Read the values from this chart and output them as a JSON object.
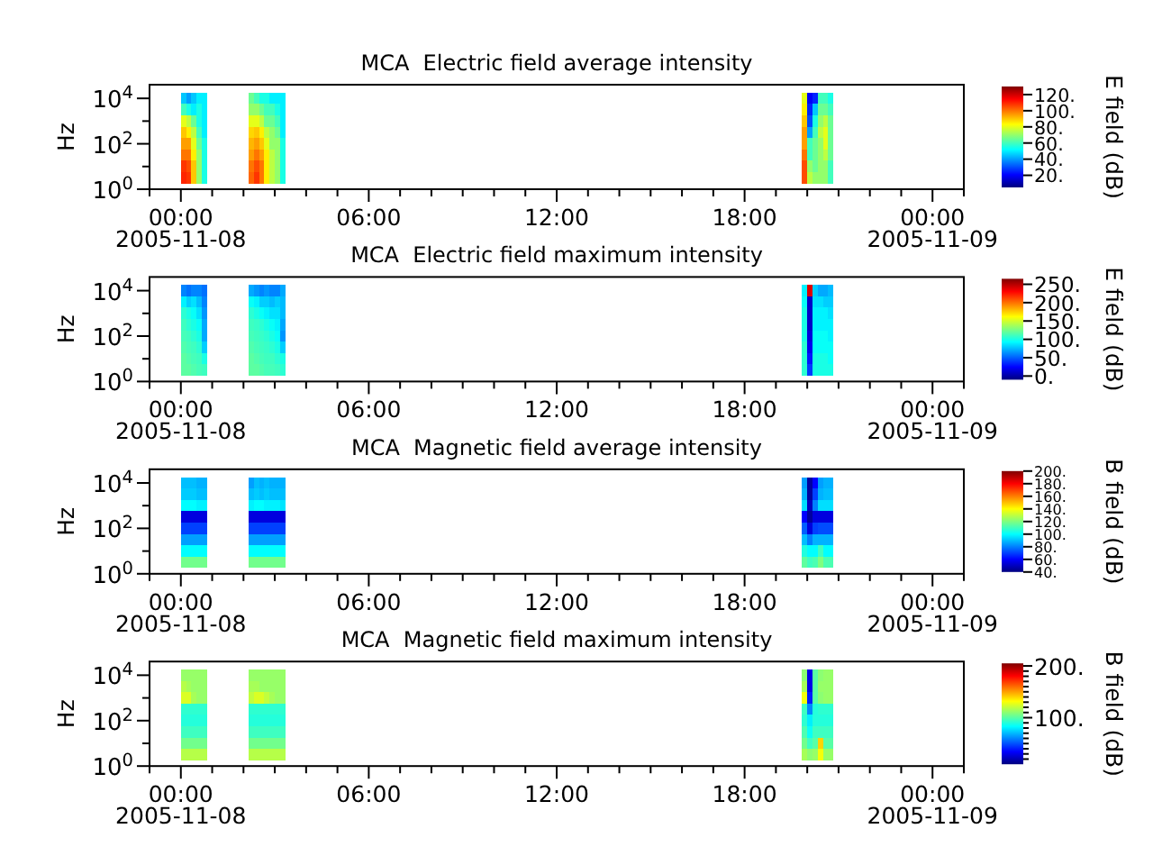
{
  "chart_data": [
    {
      "type": "heatmap",
      "title": "MCA  Electric field average intensity",
      "ylabel": "Hz",
      "clabel": "E field (dB)",
      "log": "y",
      "x": [
        "2005-11-08T00:05",
        "2005-11-08T00:15",
        "2005-11-08T00:25",
        "2005-11-08T00:35",
        "2005-11-08T00:45",
        "2005-11-08T00:55",
        "2005-11-08T02:05",
        "2005-11-08T02:15",
        "2005-11-08T02:25",
        "2005-11-08T02:35",
        "2005-11-08T02:45",
        "2005-11-08T02:55",
        "2005-11-08T03:05",
        "2005-11-08T03:15",
        "2005-11-08T03:25",
        "2005-11-08T19:45",
        "2005-11-08T19:55",
        "2005-11-08T20:05",
        "2005-11-08T20:15",
        "2005-11-08T20:25",
        "2005-11-08T20:35",
        "2005-11-08T20:45"
      ],
      "y": [
        10000,
        3162,
        1000,
        316,
        100,
        32,
        10,
        3.2
      ],
      "xlim": [
        "2005-11-07T23:00",
        "2005-11-09T01:00"
      ],
      "xticks": [
        {
          "value": "2005-11-07T23:00",
          "label": null
        },
        {
          "value": "2005-11-08T00:00",
          "label": "00:00\n2005-11-08"
        },
        {
          "value": "2005-11-08T01:00",
          "label": null
        },
        {
          "value": "2005-11-08T02:00",
          "label": null
        },
        {
          "value": "2005-11-08T03:00",
          "label": null
        },
        {
          "value": "2005-11-08T04:00",
          "label": null
        },
        {
          "value": "2005-11-08T05:00",
          "label": null
        },
        {
          "value": "2005-11-08T06:00",
          "label": "06:00"
        },
        {
          "value": "2005-11-08T07:00",
          "label": null
        },
        {
          "value": "2005-11-08T08:00",
          "label": null
        },
        {
          "value": "2005-11-08T09:00",
          "label": null
        },
        {
          "value": "2005-11-08T10:00",
          "label": null
        },
        {
          "value": "2005-11-08T11:00",
          "label": null
        },
        {
          "value": "2005-11-08T12:00",
          "label": "12:00"
        },
        {
          "value": "2005-11-08T13:00",
          "label": null
        },
        {
          "value": "2005-11-08T14:00",
          "label": null
        },
        {
          "value": "2005-11-08T15:00",
          "label": null
        },
        {
          "value": "2005-11-08T16:00",
          "label": null
        },
        {
          "value": "2005-11-08T17:00",
          "label": null
        },
        {
          "value": "2005-11-08T18:00",
          "label": "18:00"
        },
        {
          "value": "2005-11-08T19:00",
          "label": null
        },
        {
          "value": "2005-11-08T20:00",
          "label": null
        },
        {
          "value": "2005-11-08T21:00",
          "label": null
        },
        {
          "value": "2005-11-08T22:00",
          "label": null
        },
        {
          "value": "2005-11-08T23:00",
          "label": null
        },
        {
          "value": "2005-11-09T00:00",
          "label": "00:00\n2005-11-09"
        },
        {
          "value": "2005-11-09T01:00",
          "label": null
        }
      ],
      "ylim": [
        1,
        40000
      ],
      "yticks": [
        {
          "value": 1,
          "label": "10$^{0}$"
        },
        {
          "value": 10,
          "label": null
        },
        {
          "value": 100,
          "label": "10$^{2}$"
        },
        {
          "value": 1000,
          "label": null
        },
        {
          "value": 10000,
          "label": "10$^{4}$"
        }
      ],
      "clim": [
        5,
        130
      ],
      "cticks": [
        {
          "value": 20,
          "label": "20."
        },
        {
          "value": 40,
          "label": "40."
        },
        {
          "value": 60,
          "label": "60."
        },
        {
          "value": 80,
          "label": "80."
        },
        {
          "value": 100,
          "label": "100."
        },
        {
          "value": 120,
          "label": "120."
        }
      ],
      "cells": [
        [
          45,
          40,
          45,
          50,
          50,
          null,
          null,
          65,
          60,
          55,
          55,
          50,
          50,
          50,
          null,
          null,
          80,
          20,
          25,
          60,
          60,
          55
        ],
        [
          60,
          55,
          50,
          55,
          50,
          null,
          null,
          70,
          70,
          65,
          60,
          60,
          55,
          50,
          null,
          null,
          85,
          25,
          45,
          65,
          65,
          60
        ],
        [
          80,
          75,
          65,
          55,
          50,
          null,
          null,
          80,
          80,
          75,
          65,
          65,
          60,
          50,
          null,
          null,
          90,
          30,
          55,
          70,
          75,
          65
        ],
        [
          90,
          85,
          75,
          60,
          50,
          null,
          null,
          88,
          90,
          85,
          75,
          70,
          65,
          50,
          null,
          null,
          95,
          40,
          60,
          75,
          80,
          65
        ],
        [
          95,
          95,
          80,
          65,
          55,
          null,
          null,
          92,
          95,
          90,
          80,
          70,
          70,
          55,
          null,
          null,
          95,
          60,
          65,
          70,
          80,
          65
        ],
        [
          100,
          100,
          85,
          70,
          55,
          null,
          null,
          95,
          100,
          95,
          85,
          75,
          70,
          55,
          null,
          null,
          100,
          60,
          65,
          70,
          75,
          65
        ],
        [
          108,
          105,
          90,
          70,
          55,
          null,
          null,
          100,
          105,
          100,
          85,
          75,
          70,
          55,
          null,
          null,
          105,
          70,
          65,
          70,
          70,
          60
        ],
        [
          110,
          108,
          90,
          70,
          55,
          null,
          null,
          102,
          108,
          100,
          85,
          75,
          70,
          55,
          null,
          null,
          105,
          75,
          70,
          70,
          70,
          60
        ]
      ]
    },
    {
      "type": "heatmap",
      "title": "MCA  Electric field maximum intensity",
      "ylabel": "Hz",
      "clabel": "E field (dB)",
      "log": "y",
      "x": [
        "2005-11-08T00:05",
        "2005-11-08T00:15",
        "2005-11-08T00:25",
        "2005-11-08T00:35",
        "2005-11-08T00:45",
        "2005-11-08T00:55",
        "2005-11-08T02:05",
        "2005-11-08T02:15",
        "2005-11-08T02:25",
        "2005-11-08T02:35",
        "2005-11-08T02:45",
        "2005-11-08T02:55",
        "2005-11-08T03:05",
        "2005-11-08T03:15",
        "2005-11-08T03:25",
        "2005-11-08T19:45",
        "2005-11-08T19:55",
        "2005-11-08T20:05",
        "2005-11-08T20:15",
        "2005-11-08T20:25",
        "2005-11-08T20:35",
        "2005-11-08T20:45"
      ],
      "y": [
        10000,
        3162,
        1000,
        316,
        100,
        32,
        10,
        3.2
      ],
      "xlim": [
        "2005-11-07T23:00",
        "2005-11-09T01:00"
      ],
      "xticks": [
        {
          "value": "2005-11-07T23:00",
          "label": null
        },
        {
          "value": "2005-11-08T00:00",
          "label": "00:00\n2005-11-08"
        },
        {
          "value": "2005-11-08T01:00",
          "label": null
        },
        {
          "value": "2005-11-08T02:00",
          "label": null
        },
        {
          "value": "2005-11-08T03:00",
          "label": null
        },
        {
          "value": "2005-11-08T04:00",
          "label": null
        },
        {
          "value": "2005-11-08T05:00",
          "label": null
        },
        {
          "value": "2005-11-08T06:00",
          "label": "06:00"
        },
        {
          "value": "2005-11-08T07:00",
          "label": null
        },
        {
          "value": "2005-11-08T08:00",
          "label": null
        },
        {
          "value": "2005-11-08T09:00",
          "label": null
        },
        {
          "value": "2005-11-08T10:00",
          "label": null
        },
        {
          "value": "2005-11-08T11:00",
          "label": null
        },
        {
          "value": "2005-11-08T12:00",
          "label": "12:00"
        },
        {
          "value": "2005-11-08T13:00",
          "label": null
        },
        {
          "value": "2005-11-08T14:00",
          "label": null
        },
        {
          "value": "2005-11-08T15:00",
          "label": null
        },
        {
          "value": "2005-11-08T16:00",
          "label": null
        },
        {
          "value": "2005-11-08T17:00",
          "label": null
        },
        {
          "value": "2005-11-08T18:00",
          "label": "18:00"
        },
        {
          "value": "2005-11-08T19:00",
          "label": null
        },
        {
          "value": "2005-11-08T20:00",
          "label": null
        },
        {
          "value": "2005-11-08T21:00",
          "label": null
        },
        {
          "value": "2005-11-08T22:00",
          "label": null
        },
        {
          "value": "2005-11-08T23:00",
          "label": null
        },
        {
          "value": "2005-11-09T00:00",
          "label": "00:00\n2005-11-09"
        },
        {
          "value": "2005-11-09T01:00",
          "label": null
        }
      ],
      "ylim": [
        1,
        40000
      ],
      "yticks": [
        {
          "value": 1,
          "label": "10$^{0}$"
        },
        {
          "value": 10,
          "label": null
        },
        {
          "value": 100,
          "label": "10$^{2}$"
        },
        {
          "value": 1000,
          "label": null
        },
        {
          "value": 10000,
          "label": "10$^{4}$"
        }
      ],
      "clim": [
        -10,
        265
      ],
      "cticks": [
        {
          "value": 0,
          "label": "0."
        },
        {
          "value": 50,
          "label": "50."
        },
        {
          "value": 100,
          "label": "100."
        },
        {
          "value": 150,
          "label": "150."
        },
        {
          "value": 200,
          "label": "200."
        },
        {
          "value": 250,
          "label": "250."
        }
      ],
      "cells": [
        [
          60,
          55,
          60,
          60,
          55,
          null,
          null,
          70,
          65,
          60,
          65,
          60,
          60,
          70,
          null,
          null,
          90,
          240,
          80,
          70,
          70,
          75
        ],
        [
          90,
          80,
          85,
          75,
          60,
          null,
          null,
          95,
          90,
          80,
          80,
          75,
          80,
          75,
          null,
          null,
          95,
          10,
          85,
          85,
          80,
          80
        ],
        [
          105,
          100,
          95,
          85,
          65,
          null,
          null,
          105,
          100,
          95,
          90,
          85,
          85,
          75,
          null,
          null,
          100,
          10,
          90,
          90,
          90,
          85
        ],
        [
          110,
          105,
          100,
          95,
          70,
          null,
          null,
          110,
          108,
          105,
          100,
          95,
          90,
          70,
          null,
          null,
          100,
          10,
          90,
          90,
          90,
          90
        ],
        [
          112,
          110,
          105,
          100,
          70,
          null,
          null,
          112,
          110,
          108,
          105,
          100,
          95,
          65,
          null,
          null,
          100,
          15,
          95,
          95,
          95,
          90
        ],
        [
          115,
          112,
          110,
          105,
          80,
          null,
          null,
          115,
          112,
          110,
          108,
          105,
          100,
          80,
          null,
          null,
          105,
          20,
          95,
          95,
          95,
          95
        ],
        [
          118,
          115,
          112,
          110,
          100,
          null,
          null,
          118,
          115,
          112,
          110,
          110,
          105,
          100,
          null,
          null,
          105,
          30,
          100,
          100,
          100,
          95
        ],
        [
          118,
          118,
          115,
          112,
          110,
          null,
          null,
          118,
          118,
          115,
          112,
          112,
          110,
          105,
          null,
          null,
          105,
          40,
          100,
          100,
          100,
          100
        ]
      ]
    },
    {
      "type": "heatmap",
      "title": "MCA  Magnetic field average intensity",
      "ylabel": "Hz",
      "clabel": "B field (dB)",
      "log": "y",
      "x": [
        "2005-11-08T00:05",
        "2005-11-08T00:15",
        "2005-11-08T00:25",
        "2005-11-08T00:35",
        "2005-11-08T00:45",
        "2005-11-08T00:55",
        "2005-11-08T02:05",
        "2005-11-08T02:15",
        "2005-11-08T02:25",
        "2005-11-08T02:35",
        "2005-11-08T02:45",
        "2005-11-08T02:55",
        "2005-11-08T03:05",
        "2005-11-08T03:15",
        "2005-11-08T03:25",
        "2005-11-08T19:45",
        "2005-11-08T19:55",
        "2005-11-08T20:05",
        "2005-11-08T20:15",
        "2005-11-08T20:25",
        "2005-11-08T20:35",
        "2005-11-08T20:45"
      ],
      "y": [
        10000,
        3162,
        1000,
        316,
        100,
        32,
        10,
        3.2
      ],
      "xlim": [
        "2005-11-07T23:00",
        "2005-11-09T01:00"
      ],
      "xticks": [
        {
          "value": "2005-11-07T23:00",
          "label": null
        },
        {
          "value": "2005-11-08T00:00",
          "label": "00:00\n2005-11-08"
        },
        {
          "value": "2005-11-08T01:00",
          "label": null
        },
        {
          "value": "2005-11-08T02:00",
          "label": null
        },
        {
          "value": "2005-11-08T03:00",
          "label": null
        },
        {
          "value": "2005-11-08T04:00",
          "label": null
        },
        {
          "value": "2005-11-08T05:00",
          "label": null
        },
        {
          "value": "2005-11-08T06:00",
          "label": "06:00"
        },
        {
          "value": "2005-11-08T07:00",
          "label": null
        },
        {
          "value": "2005-11-08T08:00",
          "label": null
        },
        {
          "value": "2005-11-08T09:00",
          "label": null
        },
        {
          "value": "2005-11-08T10:00",
          "label": null
        },
        {
          "value": "2005-11-08T11:00",
          "label": null
        },
        {
          "value": "2005-11-08T12:00",
          "label": "12:00"
        },
        {
          "value": "2005-11-08T13:00",
          "label": null
        },
        {
          "value": "2005-11-08T14:00",
          "label": null
        },
        {
          "value": "2005-11-08T15:00",
          "label": null
        },
        {
          "value": "2005-11-08T16:00",
          "label": null
        },
        {
          "value": "2005-11-08T17:00",
          "label": null
        },
        {
          "value": "2005-11-08T18:00",
          "label": "18:00"
        },
        {
          "value": "2005-11-08T19:00",
          "label": null
        },
        {
          "value": "2005-11-08T20:00",
          "label": null
        },
        {
          "value": "2005-11-08T21:00",
          "label": null
        },
        {
          "value": "2005-11-08T22:00",
          "label": null
        },
        {
          "value": "2005-11-08T23:00",
          "label": null
        },
        {
          "value": "2005-11-09T00:00",
          "label": "00:00\n2005-11-09"
        },
        {
          "value": "2005-11-09T01:00",
          "label": null
        }
      ],
      "ylim": [
        1,
        40000
      ],
      "yticks": [
        {
          "value": 1,
          "label": "10$^{0}$"
        },
        {
          "value": 10,
          "label": null
        },
        {
          "value": 100,
          "label": "10$^{2}$"
        },
        {
          "value": 1000,
          "label": null
        },
        {
          "value": 10000,
          "label": "10$^{4}$"
        }
      ],
      "clim": [
        40,
        200
      ],
      "cticks": [
        {
          "value": 40,
          "label": "40."
        },
        {
          "value": 60,
          "label": "60."
        },
        {
          "value": 80,
          "label": "80."
        },
        {
          "value": 100,
          "label": "100."
        },
        {
          "value": 120,
          "label": "120."
        },
        {
          "value": 140,
          "label": "140."
        },
        {
          "value": 160,
          "label": "160."
        },
        {
          "value": 180,
          "label": "180."
        },
        {
          "value": 200,
          "label": "200."
        }
      ],
      "cells": [
        [
          90,
          90,
          90,
          88,
          88,
          null,
          null,
          85,
          90,
          88,
          90,
          88,
          88,
          88,
          null,
          null,
          85,
          45,
          60,
          85,
          88,
          88
        ],
        [
          92,
          92,
          92,
          90,
          90,
          null,
          null,
          90,
          92,
          90,
          92,
          90,
          90,
          90,
          null,
          null,
          88,
          45,
          70,
          88,
          90,
          90
        ],
        [
          100,
          100,
          100,
          98,
          98,
          null,
          null,
          98,
          100,
          100,
          98,
          98,
          98,
          96,
          null,
          null,
          95,
          50,
          80,
          95,
          95,
          95
        ],
        [
          55,
          55,
          55,
          55,
          55,
          null,
          null,
          55,
          55,
          55,
          55,
          55,
          55,
          55,
          null,
          null,
          60,
          45,
          55,
          55,
          55,
          55
        ],
        [
          70,
          70,
          70,
          70,
          70,
          null,
          null,
          70,
          70,
          70,
          70,
          70,
          70,
          70,
          null,
          null,
          75,
          55,
          70,
          72,
          72,
          72
        ],
        [
          85,
          85,
          85,
          85,
          85,
          null,
          null,
          85,
          85,
          85,
          85,
          85,
          85,
          85,
          null,
          null,
          90,
          80,
          88,
          88,
          88,
          88
        ],
        [
          100,
          100,
          100,
          100,
          100,
          null,
          null,
          100,
          100,
          100,
          100,
          100,
          100,
          100,
          null,
          null,
          105,
          100,
          100,
          110,
          100,
          100
        ],
        [
          118,
          118,
          118,
          118,
          118,
          null,
          null,
          118,
          118,
          118,
          118,
          118,
          118,
          118,
          null,
          null,
          115,
          110,
          112,
          120,
          112,
          112
        ]
      ]
    },
    {
      "type": "heatmap",
      "title": "MCA  Magnetic field maximum intensity",
      "ylabel": "Hz",
      "clabel": "B field (dB)",
      "log": "y",
      "x": [
        "2005-11-08T00:05",
        "2005-11-08T00:15",
        "2005-11-08T00:25",
        "2005-11-08T00:35",
        "2005-11-08T00:45",
        "2005-11-08T00:55",
        "2005-11-08T02:05",
        "2005-11-08T02:15",
        "2005-11-08T02:25",
        "2005-11-08T02:35",
        "2005-11-08T02:45",
        "2005-11-08T02:55",
        "2005-11-08T03:05",
        "2005-11-08T03:15",
        "2005-11-08T03:25",
        "2005-11-08T19:45",
        "2005-11-08T19:55",
        "2005-11-08T20:05",
        "2005-11-08T20:15",
        "2005-11-08T20:25",
        "2005-11-08T20:35",
        "2005-11-08T20:45"
      ],
      "y": [
        10000,
        3162,
        1000,
        316,
        100,
        32,
        10,
        3.2
      ],
      "xlim": [
        "2005-11-07T23:00",
        "2005-11-09T01:00"
      ],
      "xticks": [
        {
          "value": "2005-11-07T23:00",
          "label": null
        },
        {
          "value": "2005-11-08T00:00",
          "label": "00:00\n2005-11-08"
        },
        {
          "value": "2005-11-08T01:00",
          "label": null
        },
        {
          "value": "2005-11-08T02:00",
          "label": null
        },
        {
          "value": "2005-11-08T03:00",
          "label": null
        },
        {
          "value": "2005-11-08T04:00",
          "label": null
        },
        {
          "value": "2005-11-08T05:00",
          "label": null
        },
        {
          "value": "2005-11-08T06:00",
          "label": "06:00"
        },
        {
          "value": "2005-11-08T07:00",
          "label": null
        },
        {
          "value": "2005-11-08T08:00",
          "label": null
        },
        {
          "value": "2005-11-08T09:00",
          "label": null
        },
        {
          "value": "2005-11-08T10:00",
          "label": null
        },
        {
          "value": "2005-11-08T11:00",
          "label": null
        },
        {
          "value": "2005-11-08T12:00",
          "label": "12:00"
        },
        {
          "value": "2005-11-08T13:00",
          "label": null
        },
        {
          "value": "2005-11-08T14:00",
          "label": null
        },
        {
          "value": "2005-11-08T15:00",
          "label": null
        },
        {
          "value": "2005-11-08T16:00",
          "label": null
        },
        {
          "value": "2005-11-08T17:00",
          "label": null
        },
        {
          "value": "2005-11-08T18:00",
          "label": "18:00"
        },
        {
          "value": "2005-11-08T19:00",
          "label": null
        },
        {
          "value": "2005-11-08T20:00",
          "label": null
        },
        {
          "value": "2005-11-08T21:00",
          "label": null
        },
        {
          "value": "2005-11-08T22:00",
          "label": null
        },
        {
          "value": "2005-11-08T23:00",
          "label": null
        },
        {
          "value": "2005-11-09T00:00",
          "label": "00:00\n2005-11-09"
        },
        {
          "value": "2005-11-09T01:00",
          "label": null
        }
      ],
      "ylim": [
        1,
        40000
      ],
      "yticks": [
        {
          "value": 1,
          "label": "10$^{0}$"
        },
        {
          "value": 10,
          "label": null
        },
        {
          "value": 100,
          "label": "10$^{2}$"
        },
        {
          "value": 1000,
          "label": null
        },
        {
          "value": 10000,
          "label": "10$^{4}$"
        }
      ],
      "clim": [
        10,
        205
      ],
      "cticks": [
        {
          "value": 20,
          "label": null
        },
        {
          "value": 30,
          "label": null
        },
        {
          "value": 40,
          "label": null
        },
        {
          "value": 50,
          "label": null
        },
        {
          "value": 60,
          "label": null
        },
        {
          "value": 70,
          "label": null
        },
        {
          "value": 80,
          "label": null
        },
        {
          "value": 90,
          "label": null
        },
        {
          "value": 100,
          "label": "100."
        },
        {
          "value": 110,
          "label": null
        },
        {
          "value": 120,
          "label": null
        },
        {
          "value": 130,
          "label": null
        },
        {
          "value": 140,
          "label": null
        },
        {
          "value": 150,
          "label": null
        },
        {
          "value": 160,
          "label": null
        },
        {
          "value": 170,
          "label": null
        },
        {
          "value": 180,
          "label": null
        },
        {
          "value": 190,
          "label": null
        },
        {
          "value": 200,
          "label": "200."
        }
      ],
      "cells": [
        [
          112,
          112,
          112,
          112,
          112,
          null,
          null,
          112,
          112,
          112,
          112,
          112,
          112,
          112,
          null,
          null,
          110,
          30,
          100,
          110,
          112,
          112
        ],
        [
          118,
          115,
          112,
          112,
          112,
          null,
          null,
          115,
          115,
          112,
          112,
          112,
          112,
          112,
          null,
          null,
          115,
          30,
          100,
          112,
          112,
          112
        ],
        [
          125,
          125,
          115,
          112,
          112,
          null,
          null,
          120,
          125,
          125,
          120,
          115,
          112,
          112,
          null,
          null,
          130,
          40,
          100,
          110,
          112,
          112
        ],
        [
          92,
          92,
          92,
          92,
          92,
          null,
          null,
          92,
          92,
          92,
          92,
          92,
          92,
          92,
          null,
          null,
          95,
          60,
          90,
          92,
          92,
          92
        ],
        [
          90,
          90,
          90,
          90,
          90,
          null,
          null,
          90,
          90,
          90,
          90,
          90,
          90,
          90,
          null,
          null,
          92,
          80,
          90,
          90,
          90,
          90
        ],
        [
          95,
          95,
          95,
          95,
          95,
          null,
          null,
          95,
          95,
          95,
          95,
          95,
          95,
          95,
          null,
          null,
          98,
          85,
          95,
          95,
          95,
          95
        ],
        [
          105,
          105,
          105,
          105,
          105,
          null,
          null,
          105,
          105,
          105,
          105,
          105,
          105,
          105,
          null,
          null,
          105,
          95,
          100,
          140,
          100,
          100
        ],
        [
          118,
          118,
          118,
          118,
          118,
          null,
          null,
          118,
          118,
          118,
          118,
          118,
          118,
          118,
          null,
          null,
          115,
          110,
          112,
          130,
          112,
          112
        ]
      ]
    }
  ]
}
